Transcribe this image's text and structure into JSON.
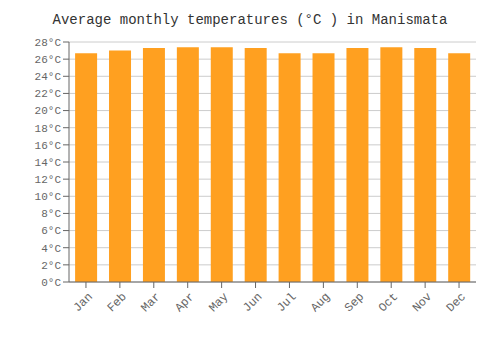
{
  "chart_data": {
    "type": "bar",
    "title": "Average monthly temperatures (°C ) in Manismata",
    "categories": [
      "Jan",
      "Feb",
      "Mar",
      "Apr",
      "May",
      "Jun",
      "Jul",
      "Aug",
      "Sep",
      "Oct",
      "Nov",
      "Dec"
    ],
    "values": [
      26.7,
      27.0,
      27.3,
      27.4,
      27.4,
      27.3,
      26.7,
      26.7,
      27.3,
      27.4,
      27.3,
      26.7
    ],
    "color": "#FFA020",
    "ylim": [
      0,
      28
    ],
    "yticks": [
      {
        "value": 0,
        "label": "0°C"
      },
      {
        "value": 2,
        "label": "2°C"
      },
      {
        "value": 4,
        "label": "4°C"
      },
      {
        "value": 6,
        "label": "6°C"
      },
      {
        "value": 8,
        "label": "8°C"
      },
      {
        "value": 10,
        "label": "10°C"
      },
      {
        "value": 12,
        "label": "12°C"
      },
      {
        "value": 14,
        "label": "14°C"
      },
      {
        "value": 16,
        "label": "16°C"
      },
      {
        "value": 18,
        "label": "18°C"
      },
      {
        "value": 20,
        "label": "20°C"
      },
      {
        "value": 22,
        "label": "22°C"
      },
      {
        "value": 24,
        "label": "24°C"
      },
      {
        "value": 26,
        "label": "26°C"
      },
      {
        "value": 28,
        "label": "28°C"
      }
    ],
    "grid": true
  }
}
